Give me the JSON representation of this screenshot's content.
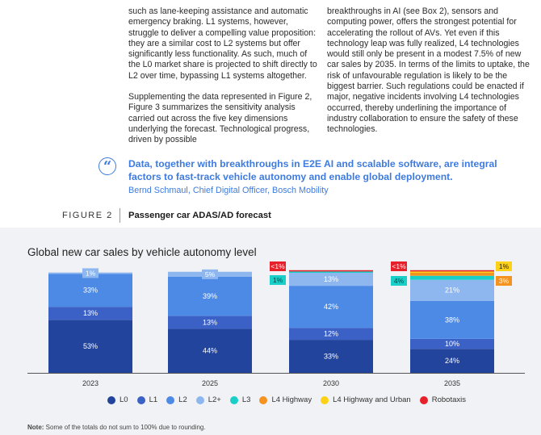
{
  "body_text": {
    "left_paragraphs": [
      "such as lane-keeping assistance and automatic emergency braking. L1 systems, however, struggle to deliver a compelling value proposition: they are a similar cost to L2 systems but offer significantly less functionality. As such, much of the L0 market share is projected to shift directly to L2 over time, bypassing L1 systems altogether.",
      "Supplementing the data represented in Figure 2, Figure 3 summarizes the sensitivity analysis carried out across the five key dimensions underlying the forecast. Technological progress, driven by possible"
    ],
    "right_paragraph": "breakthroughs in AI (see Box 2), sensors and computing power, offers the strongest potential for accelerating the rollout of AVs. Yet even if this technology leap was fully realized, L4 technologies would still only be present in a modest 7.5% of new car sales by 2035. In terms of the limits to uptake, the risk of unfavourable regulation is likely to be the biggest barrier. Such regulations could be enacted if major, negative incidents involving L4 technologies occurred, thereby underlining the importance of industry collaboration to ensure the safety of these technologies."
  },
  "quote": {
    "mark": "“",
    "text": "Data, together with breakthroughs in E2E AI and scalable software, are integral factors to fast-track vehicle autonomy and enable global deployment.",
    "author": "Bernd Schmaul, Chief Digital Officer, Bosch Mobility"
  },
  "figure": {
    "label": "FIGURE 2",
    "title": "Passenger car ADAS/AD forecast"
  },
  "note": {
    "prefix": "Note:",
    "text": " Some of the totals do not sum to 100% due to rounding."
  },
  "chart_data": {
    "type": "bar",
    "stacked": true,
    "title": "Global new car sales by vehicle autonomy level",
    "categories": [
      "2023",
      "2025",
      "2030",
      "2035"
    ],
    "series": [
      {
        "name": "L0",
        "color": "#22449c",
        "values": [
          53,
          44,
          33,
          24
        ],
        "labels": [
          "53%",
          "44%",
          "33%",
          "24%"
        ]
      },
      {
        "name": "L1",
        "color": "#3c61c6",
        "values": [
          13,
          13,
          12,
          10
        ],
        "labels": [
          "13%",
          "13%",
          "12%",
          "10%"
        ]
      },
      {
        "name": "L2",
        "color": "#4d8ae6",
        "values": [
          33,
          39,
          42,
          38
        ],
        "labels": [
          "33%",
          "39%",
          "42%",
          "38%"
        ]
      },
      {
        "name": "L2+",
        "color": "#8fb7ef",
        "values": [
          1,
          5,
          13,
          21
        ],
        "labels": [
          "1%",
          "5%",
          "13%",
          "21%"
        ]
      },
      {
        "name": "L3",
        "color": "#19cfc8",
        "values": [
          0,
          0,
          1,
          4
        ],
        "labels": [
          "",
          "",
          "1%",
          "4%"
        ]
      },
      {
        "name": "L4 Highway",
        "color": "#f4931f",
        "values": [
          0,
          0,
          0,
          3
        ],
        "labels": [
          "",
          "",
          "",
          "3%"
        ]
      },
      {
        "name": "L4 Highway and Urban",
        "color": "#fcd116",
        "values": [
          0,
          0,
          0,
          1
        ],
        "labels": [
          "",
          "",
          "",
          "1%"
        ]
      },
      {
        "name": "Robotaxis",
        "color": "#e8202a",
        "values": [
          0,
          0,
          0.5,
          0.5
        ],
        "labels": [
          "",
          "",
          "<1%",
          "<1%"
        ]
      }
    ],
    "ylim": [
      0,
      100
    ],
    "grid": false,
    "legend_position": "bottom"
  }
}
